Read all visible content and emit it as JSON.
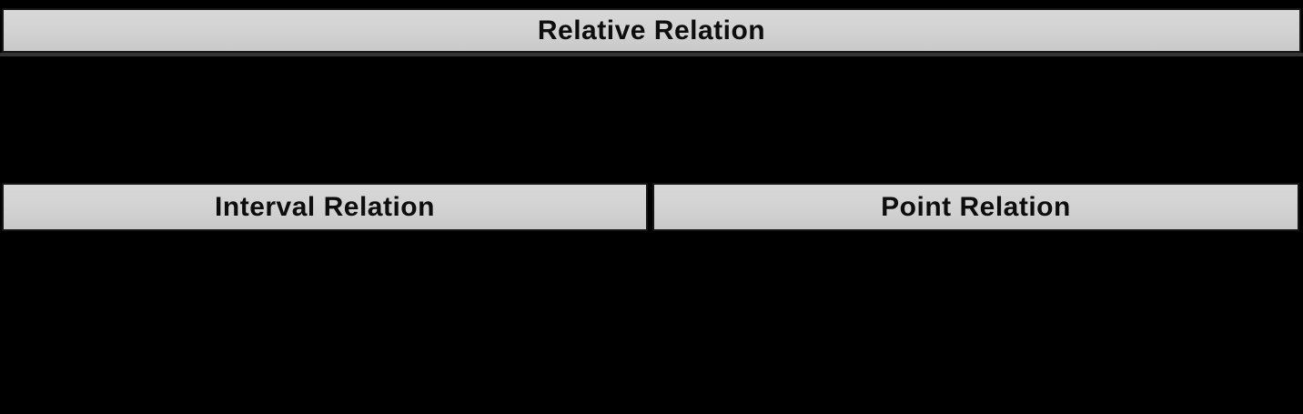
{
  "diagram": {
    "title": "Relative Relation",
    "sections": [
      {
        "label": "Interval Relation"
      },
      {
        "label": "Point Relation"
      }
    ],
    "colors": {
      "background": "#000000",
      "bar_fill": "#d2d2d2",
      "bar_border": "#161616",
      "separator": "#333333",
      "text": "#0d0d0d"
    }
  }
}
